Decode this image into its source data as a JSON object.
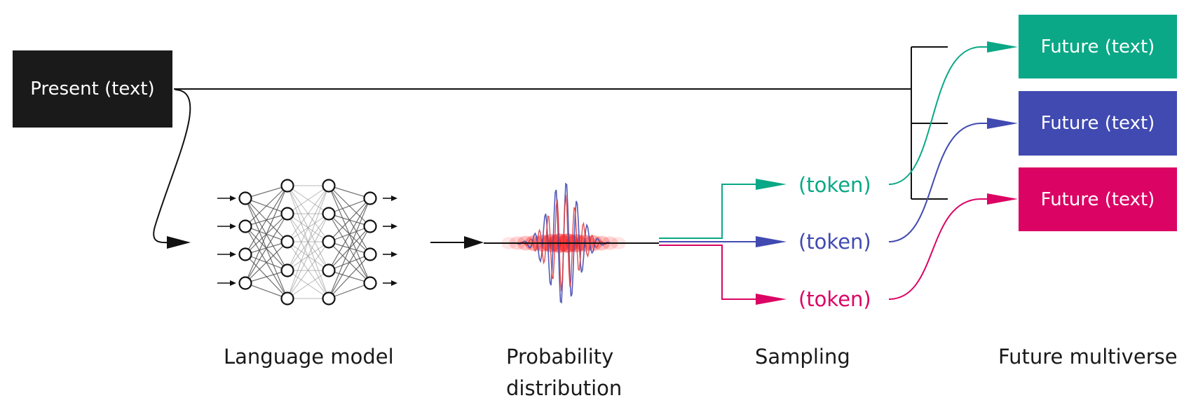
{
  "colors": {
    "present": "#1a1a1a",
    "green": "#0aa886",
    "blue": "#414ab1",
    "pink": "#db0464",
    "line": "#111111",
    "dist": "#ff0000"
  },
  "present": {
    "label": "Present (text)"
  },
  "futures": [
    {
      "label": "Future (text)",
      "color": "green"
    },
    {
      "label": "Future (text)",
      "color": "blue"
    },
    {
      "label": "Future (text)",
      "color": "pink"
    }
  ],
  "tokens": [
    {
      "label": "(token)",
      "color": "green"
    },
    {
      "label": "(token)",
      "color": "blue"
    },
    {
      "label": "(token)",
      "color": "pink"
    }
  ],
  "stages": {
    "language_model": "Language model",
    "probability_distribution": "Probability distribution",
    "sampling": "Sampling",
    "future_multiverse": "Future multiverse"
  },
  "icons": {
    "language_model": "neural-network-icon",
    "probability_distribution": "wave-distribution-icon"
  }
}
